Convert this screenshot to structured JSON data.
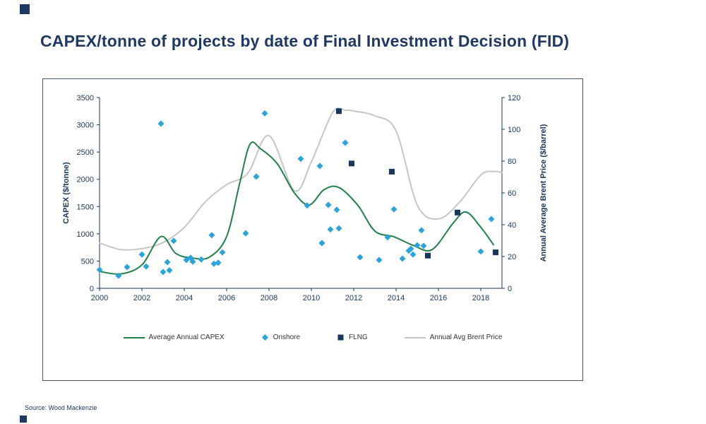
{
  "page": {
    "source": "Source:  Wood Mackenzie"
  },
  "chart_data": {
    "type": "scatter",
    "title": "CAPEX/tonne of projects by date of Final Investment Decision (FID)",
    "axis_color": "#17375E",
    "grid": false,
    "legend_position": "bottom",
    "x_axis": {
      "min": 2000,
      "max": 2019,
      "ticks": [
        2000,
        2002,
        2004,
        2006,
        2008,
        2010,
        2012,
        2014,
        2016,
        2018
      ]
    },
    "y_left": {
      "label": "CAPEX  ($/tonne)",
      "min": 0,
      "max": 3500,
      "ticks": [
        0,
        500,
        1000,
        1500,
        2000,
        2500,
        3000,
        3500
      ]
    },
    "y_right": {
      "label": "Annual Average Brent Price ($/barrel)",
      "min": 0,
      "max": 120,
      "ticks": [
        0,
        20,
        40,
        60,
        80,
        100,
        120
      ]
    },
    "series": [
      {
        "name": "Average Annual CAPEX",
        "type": "line",
        "axis": "left",
        "color": "#1F8048",
        "points": [
          [
            2000,
            310
          ],
          [
            2001,
            265
          ],
          [
            2002,
            430
          ],
          [
            2002.9,
            950
          ],
          [
            2003.6,
            640
          ],
          [
            2004.4,
            555
          ],
          [
            2005.2,
            575
          ],
          [
            2006,
            950
          ],
          [
            2006.6,
            1900
          ],
          [
            2007.1,
            2640
          ],
          [
            2007.6,
            2560
          ],
          [
            2008.4,
            2280
          ],
          [
            2009.2,
            1750
          ],
          [
            2009.9,
            1530
          ],
          [
            2010.6,
            1810
          ],
          [
            2011.3,
            1850
          ],
          [
            2012.2,
            1520
          ],
          [
            2013,
            1050
          ],
          [
            2013.9,
            945
          ],
          [
            2014.8,
            790
          ],
          [
            2015.7,
            710
          ],
          [
            2016.7,
            1200
          ],
          [
            2017.3,
            1400
          ],
          [
            2018,
            1120
          ],
          [
            2018.6,
            800
          ]
        ]
      },
      {
        "name": "Onshore",
        "type": "scatter",
        "marker": "diamond",
        "axis": "left",
        "color": "#2BA3DB",
        "points": [
          [
            2000,
            340
          ],
          [
            2000.9,
            230
          ],
          [
            2001.3,
            390
          ],
          [
            2002,
            620
          ],
          [
            2002.2,
            400
          ],
          [
            2002.9,
            3020
          ],
          [
            2003,
            300
          ],
          [
            2003.2,
            480
          ],
          [
            2003.3,
            330
          ],
          [
            2003.5,
            870
          ],
          [
            2004.1,
            520
          ],
          [
            2004.3,
            560
          ],
          [
            2004.4,
            490
          ],
          [
            2004.8,
            530
          ],
          [
            2005.3,
            975
          ],
          [
            2005.4,
            450
          ],
          [
            2005.6,
            470
          ],
          [
            2005.8,
            660
          ],
          [
            2006.9,
            1010
          ],
          [
            2007.4,
            2050
          ],
          [
            2007.8,
            3210
          ],
          [
            2009.5,
            2375
          ],
          [
            2009.8,
            1520
          ],
          [
            2010.4,
            2245
          ],
          [
            2010.5,
            830
          ],
          [
            2010.8,
            1530
          ],
          [
            2010.9,
            1080
          ],
          [
            2011.2,
            1440
          ],
          [
            2011.3,
            1100
          ],
          [
            2011.6,
            2670
          ],
          [
            2012.3,
            570
          ],
          [
            2013.2,
            520
          ],
          [
            2013.6,
            935
          ],
          [
            2013.9,
            1450
          ],
          [
            2014.3,
            545
          ],
          [
            2014.6,
            690
          ],
          [
            2014.7,
            725
          ],
          [
            2014.8,
            620
          ],
          [
            2015,
            790
          ],
          [
            2015.2,
            1065
          ],
          [
            2015.3,
            780
          ],
          [
            2018,
            675
          ],
          [
            2018.5,
            1270
          ]
        ]
      },
      {
        "name": "FLNG",
        "type": "scatter",
        "marker": "square",
        "axis": "left",
        "color": "#17375E",
        "points": [
          [
            2011.3,
            3250
          ],
          [
            2011.9,
            2290
          ],
          [
            2013.8,
            2140
          ],
          [
            2015.5,
            600
          ],
          [
            2016.9,
            1390
          ],
          [
            2018.7,
            660
          ]
        ]
      },
      {
        "name": "Annual Avg Brent Price",
        "type": "line",
        "axis": "right",
        "color": "#C6C6C6",
        "points": [
          [
            2000,
            28.5
          ],
          [
            2001,
            24.4
          ],
          [
            2002,
            25
          ],
          [
            2003,
            28.8
          ],
          [
            2004,
            38.3
          ],
          [
            2005,
            54.5
          ],
          [
            2006,
            65.2
          ],
          [
            2007,
            72.4
          ],
          [
            2008,
            96
          ],
          [
            2009.2,
            61.5
          ],
          [
            2010,
            79.5
          ],
          [
            2011,
            110.5
          ],
          [
            2011.6,
            112
          ],
          [
            2012,
            111.5
          ],
          [
            2013,
            108.5
          ],
          [
            2014,
            99
          ],
          [
            2015,
            52.4
          ],
          [
            2016,
            43.7
          ],
          [
            2017,
            54.2
          ],
          [
            2018,
            71.3
          ],
          [
            2018.6,
            73.5
          ],
          [
            2019,
            72.8
          ]
        ]
      }
    ]
  }
}
